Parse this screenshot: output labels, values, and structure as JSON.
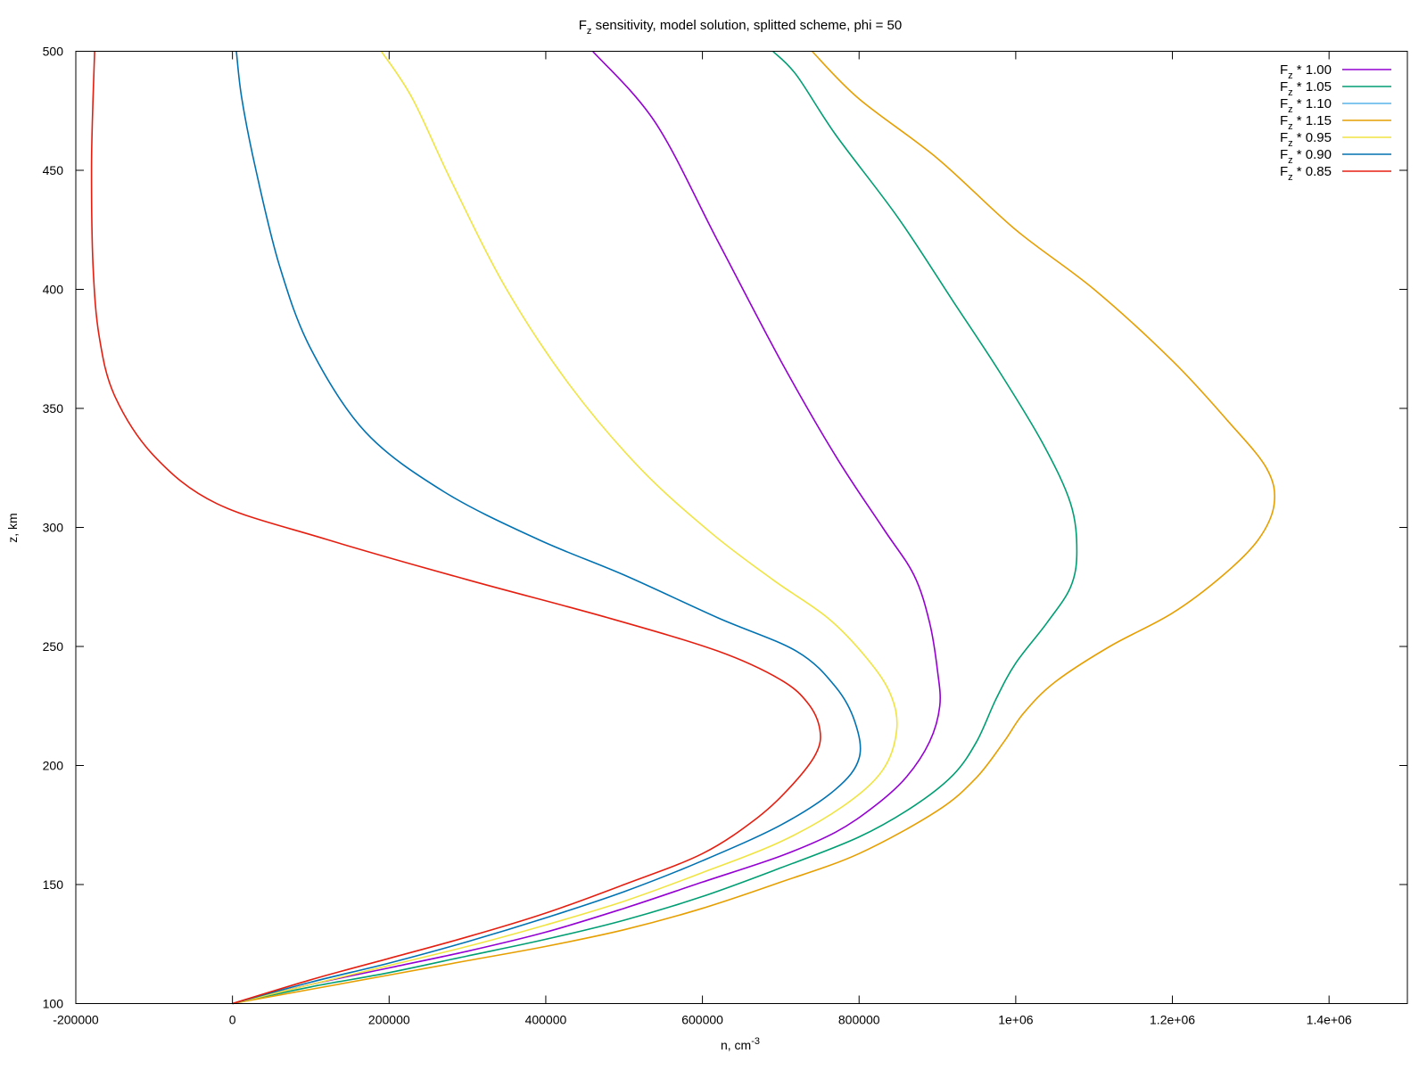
{
  "chart_data": {
    "type": "line",
    "title": {
      "main": "F",
      "sub": "z",
      "rest": " sensitivity, model solution, splitted scheme, phi = 50"
    },
    "xlabel": {
      "main": "n, cm",
      "sup": "-3"
    },
    "ylabel": "z, km",
    "xlim": [
      -200000,
      1500000
    ],
    "ylim": [
      100,
      500
    ],
    "xticks": [
      -200000,
      0,
      200000,
      400000,
      600000,
      800000,
      1000000,
      1200000,
      1400000
    ],
    "xtick_labels": [
      "-200000",
      "0",
      "200000",
      "400000",
      "600000",
      "800000",
      "1e+06",
      "1.2e+06",
      "1.4e+06"
    ],
    "yticks": [
      100,
      150,
      200,
      250,
      300,
      350,
      400,
      450,
      500
    ],
    "ytick_labels": [
      "100",
      "150",
      "200",
      "250",
      "300",
      "350",
      "400",
      "450",
      "500"
    ],
    "grid": false,
    "legend_position": "top-right",
    "series": [
      {
        "legend_main": "F",
        "legend_sub": "z",
        "legend_rest": " * 1.00",
        "color": "#9400d3",
        "points": [
          [
            0,
            100
          ],
          [
            100000,
            108
          ],
          [
            200000,
            115
          ],
          [
            300000,
            122
          ],
          [
            400000,
            130
          ],
          [
            500000,
            140
          ],
          [
            600000,
            151
          ],
          [
            700000,
            162
          ],
          [
            770000,
            172
          ],
          [
            820000,
            183
          ],
          [
            860000,
            195
          ],
          [
            890000,
            210
          ],
          [
            903000,
            225
          ],
          [
            900000,
            240
          ],
          [
            890000,
            260
          ],
          [
            870000,
            280
          ],
          [
            830000,
            300
          ],
          [
            770000,
            330
          ],
          [
            700000,
            370
          ],
          [
            620000,
            420
          ],
          [
            540000,
            470
          ],
          [
            460000,
            500
          ]
        ]
      },
      {
        "legend_main": "F",
        "legend_sub": "z",
        "legend_rest": " * 1.05",
        "color": "#009e73",
        "points": [
          [
            0,
            100
          ],
          [
            100000,
            107
          ],
          [
            200000,
            113
          ],
          [
            300000,
            120
          ],
          [
            400000,
            127
          ],
          [
            500000,
            135
          ],
          [
            600000,
            145
          ],
          [
            700000,
            157
          ],
          [
            800000,
            170
          ],
          [
            870000,
            183
          ],
          [
            920000,
            196
          ],
          [
            950000,
            210
          ],
          [
            975000,
            228
          ],
          [
            1000000,
            243
          ],
          [
            1040000,
            260
          ],
          [
            1070000,
            275
          ],
          [
            1078000,
            290
          ],
          [
            1070000,
            310
          ],
          [
            1035000,
            335
          ],
          [
            980000,
            365
          ],
          [
            920000,
            395
          ],
          [
            850000,
            430
          ],
          [
            770000,
            465
          ],
          [
            720000,
            490
          ],
          [
            690000,
            500
          ]
        ]
      },
      {
        "legend_main": "F",
        "legend_sub": "z",
        "legend_rest": " * 1.10",
        "color": "#56b4e9",
        "points": []
      },
      {
        "legend_main": "F",
        "legend_sub": "z",
        "legend_rest": " * 1.15",
        "color": "#e69f00",
        "points": [
          [
            0,
            100
          ],
          [
            100000,
            106
          ],
          [
            200000,
            112
          ],
          [
            300000,
            118
          ],
          [
            400000,
            124
          ],
          [
            500000,
            131
          ],
          [
            600000,
            140
          ],
          [
            700000,
            151
          ],
          [
            800000,
            163
          ],
          [
            900000,
            181
          ],
          [
            950000,
            195
          ],
          [
            985000,
            210
          ],
          [
            1010000,
            222
          ],
          [
            1050000,
            235
          ],
          [
            1120000,
            250
          ],
          [
            1200000,
            264
          ],
          [
            1265000,
            280
          ],
          [
            1310000,
            295
          ],
          [
            1330000,
            310
          ],
          [
            1320000,
            325
          ],
          [
            1270000,
            345
          ],
          [
            1200000,
            370
          ],
          [
            1100000,
            400
          ],
          [
            1000000,
            425
          ],
          [
            900000,
            455
          ],
          [
            800000,
            480
          ],
          [
            740000,
            500
          ]
        ]
      },
      {
        "legend_main": "F",
        "legend_sub": "z",
        "legend_rest": " * 0.95",
        "color": "#f0e442",
        "points": [
          [
            0,
            100
          ],
          [
            100000,
            108
          ],
          [
            200000,
            116
          ],
          [
            300000,
            124
          ],
          [
            400000,
            133
          ],
          [
            500000,
            143
          ],
          [
            600000,
            155
          ],
          [
            700000,
            168
          ],
          [
            780000,
            183
          ],
          [
            830000,
            198
          ],
          [
            848000,
            215
          ],
          [
            840000,
            230
          ],
          [
            810000,
            245
          ],
          [
            760000,
            262
          ],
          [
            690000,
            278
          ],
          [
            610000,
            298
          ],
          [
            520000,
            325
          ],
          [
            430000,
            360
          ],
          [
            350000,
            400
          ],
          [
            280000,
            445
          ],
          [
            230000,
            480
          ],
          [
            190000,
            500
          ]
        ]
      },
      {
        "legend_main": "F",
        "legend_sub": "z",
        "legend_rest": " * 0.90",
        "color": "#0072b2",
        "points": [
          [
            0,
            100
          ],
          [
            100000,
            109
          ],
          [
            200000,
            117
          ],
          [
            300000,
            126
          ],
          [
            400000,
            136
          ],
          [
            500000,
            147
          ],
          [
            600000,
            160
          ],
          [
            700000,
            175
          ],
          [
            770000,
            190
          ],
          [
            800000,
            203
          ],
          [
            795000,
            218
          ],
          [
            770000,
            233
          ],
          [
            720000,
            248
          ],
          [
            620000,
            262
          ],
          [
            500000,
            280
          ],
          [
            390000,
            295
          ],
          [
            270000,
            315
          ],
          [
            170000,
            340
          ],
          [
            100000,
            375
          ],
          [
            60000,
            410
          ],
          [
            30000,
            450
          ],
          [
            12000,
            480
          ],
          [
            5000,
            500
          ]
        ]
      },
      {
        "legend_main": "F",
        "legend_sub": "z",
        "legend_rest": " * 0.85",
        "color": "#e51e10",
        "points": [
          [
            0,
            100
          ],
          [
            100000,
            110
          ],
          [
            200000,
            119
          ],
          [
            300000,
            128
          ],
          [
            400000,
            138
          ],
          [
            500000,
            150
          ],
          [
            600000,
            163
          ],
          [
            670000,
            178
          ],
          [
            715000,
            192
          ],
          [
            745000,
            205
          ],
          [
            750000,
            215
          ],
          [
            735000,
            226
          ],
          [
            700000,
            236
          ],
          [
            620000,
            248
          ],
          [
            480000,
            262
          ],
          [
            300000,
            278
          ],
          [
            120000,
            295
          ],
          [
            -20000,
            310
          ],
          [
            -100000,
            330
          ],
          [
            -150000,
            355
          ],
          [
            -170000,
            380
          ],
          [
            -178000,
            410
          ],
          [
            -180000,
            450
          ],
          [
            -178000,
            480
          ],
          [
            -176000,
            500
          ]
        ]
      }
    ]
  }
}
